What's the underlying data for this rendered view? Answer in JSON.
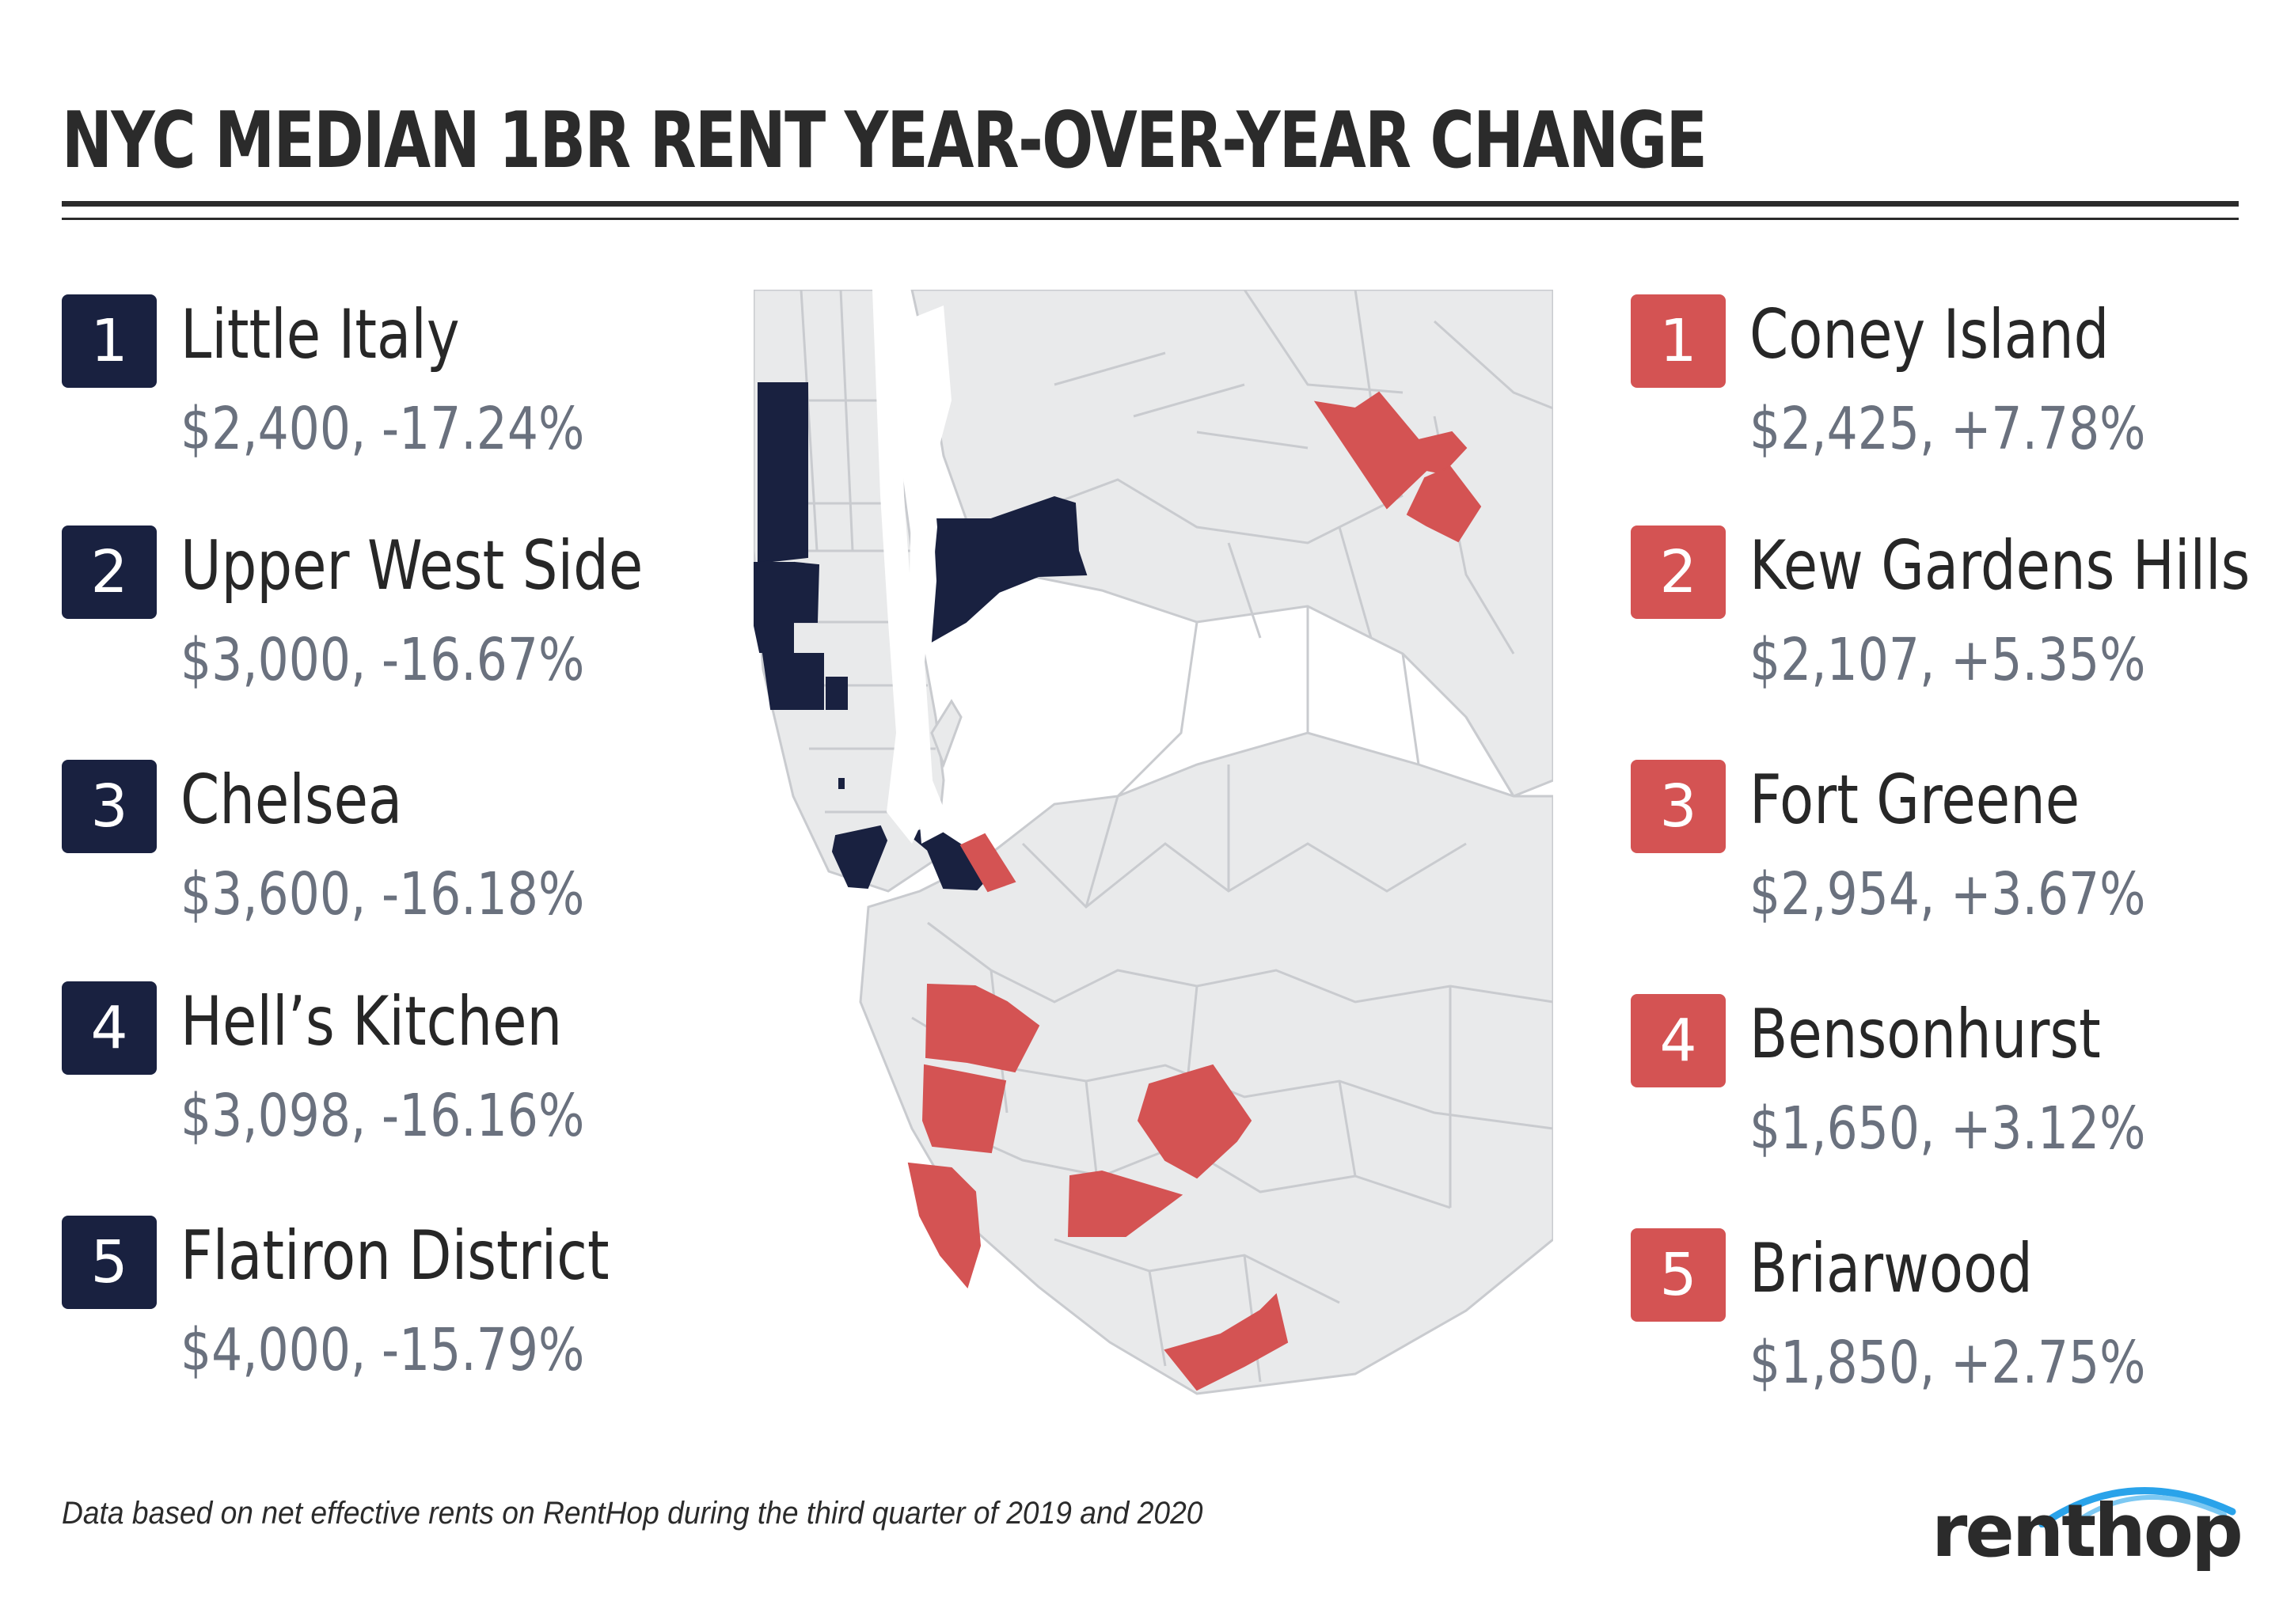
{
  "title": "NYC MEDIAN 1BR RENT YEAR-OVER-YEAR CHANGE",
  "colors": {
    "decrease": "#192140",
    "increase": "#d45353",
    "neutral": "#e9eaeb",
    "border": "#c9cbcf"
  },
  "decreases": [
    {
      "rank": "1",
      "name": "Little Italy",
      "stat": "$2,400, -17.24%"
    },
    {
      "rank": "2",
      "name": "Upper West Side",
      "stat": "$3,000, -16.67%"
    },
    {
      "rank": "3",
      "name": "Chelsea",
      "stat": "$3,600, -16.18%"
    },
    {
      "rank": "4",
      "name": "Hell’s Kitchen",
      "stat": "$3,098, -16.16%"
    },
    {
      "rank": "5",
      "name": "Flatiron District",
      "stat": "$4,000, -15.79%"
    }
  ],
  "increases": [
    {
      "rank": "1",
      "name": "Coney Island",
      "stat": "$2,425, +7.78%"
    },
    {
      "rank": "2",
      "name": "Kew Gardens Hills",
      "stat": "$2,107, +5.35%"
    },
    {
      "rank": "3",
      "name": "Fort Greene",
      "stat": "$2,954, +3.67%"
    },
    {
      "rank": "4",
      "name": "Bensonhurst",
      "stat": "$1,650, +3.12%"
    },
    {
      "rank": "5",
      "name": "Briarwood",
      "stat": "$1,850, +2.75%"
    }
  ],
  "footnote": "Data based on net effective rents on RentHop during the third quarter of 2019 and 2020",
  "logo": {
    "text": "renthop",
    "icon": "arc-icon"
  }
}
